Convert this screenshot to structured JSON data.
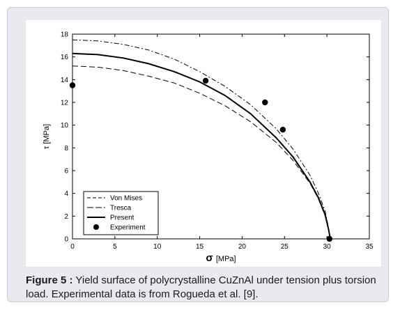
{
  "caption": {
    "label": "Figure 5 :",
    "text": " Yield surface of polycrystalline CuZnAl under tension plus torsion load. Experimental data is from Rogueda et al. [9]."
  },
  "chart_data": {
    "type": "line",
    "xlabel_symbol": "σ",
    "xlabel_unit": "[MPa]",
    "ylabel": "τ [MPa]",
    "xlim": [
      0,
      35
    ],
    "ylim": [
      0,
      18
    ],
    "xticks": [
      0,
      5,
      10,
      15,
      20,
      25,
      30,
      35
    ],
    "yticks": [
      0,
      2,
      4,
      6,
      8,
      10,
      12,
      14,
      16,
      18
    ],
    "legend_position": "bottom-left",
    "grid": false,
    "series": [
      {
        "name": "Von Mises",
        "style": "dashdot",
        "x": [
          0,
          3,
          6,
          9,
          12,
          15,
          18,
          21,
          24,
          26,
          28,
          29,
          29.8,
          30.2,
          30.4
        ],
        "y": [
          17.5,
          17.4,
          17.1,
          16.6,
          15.8,
          14.7,
          13.4,
          11.8,
          9.7,
          7.9,
          5.6,
          4.0,
          2.4,
          0.9,
          0
        ]
      },
      {
        "name": "Tresca",
        "style": "dashed",
        "x": [
          0,
          3,
          6,
          9,
          12,
          15,
          18,
          21,
          24,
          26,
          28,
          29,
          29.8,
          30.2,
          30.4
        ],
        "y": [
          15.2,
          15.1,
          14.8,
          14.3,
          13.7,
          12.8,
          11.7,
          10.3,
          8.5,
          6.9,
          4.9,
          3.5,
          2.0,
          0.8,
          0
        ]
      },
      {
        "name": "Present",
        "style": "solid",
        "x": [
          0,
          3,
          6,
          9,
          12,
          15,
          18,
          21,
          24,
          26,
          28,
          29,
          29.8,
          30.2,
          30.4
        ],
        "y": [
          16.3,
          16.2,
          15.9,
          15.4,
          14.7,
          13.8,
          12.6,
          11.0,
          8.9,
          7.2,
          5.0,
          3.6,
          2.1,
          0.8,
          0
        ]
      },
      {
        "name": "Experiment",
        "style": "marker",
        "x": [
          0,
          15.7,
          22.7,
          24.8,
          30.3
        ],
        "y": [
          13.5,
          13.9,
          12.0,
          9.6,
          0
        ]
      }
    ]
  }
}
